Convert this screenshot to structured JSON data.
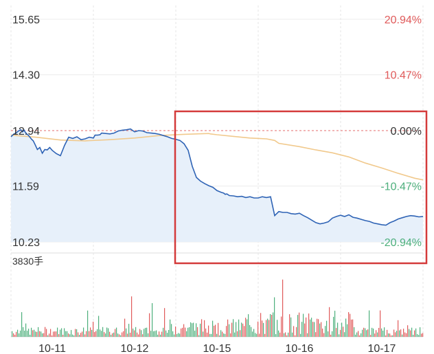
{
  "chart_data": [
    {
      "type": "line",
      "panel": "price",
      "y_left_ticks": [
        "15.65",
        "14.30",
        "12.94",
        "11.59",
        "10.23"
      ],
      "y_left_values": [
        15.65,
        14.3,
        12.94,
        11.59,
        10.23
      ],
      "y_right_ticks": [
        "20.94%",
        "10.47%",
        "0.00%",
        "-10.47%",
        "-20.94%"
      ],
      "ylim": [
        10.23,
        15.65
      ],
      "reference_price": 12.94,
      "x_tick_labels": [
        "10-11",
        "10-12",
        "10-15",
        "10-16",
        "10-17"
      ],
      "grid": true,
      "colors": {
        "price_line": "#2e63b5",
        "avg_line": "#f1c98c",
        "area_fill": "#e7f0fa",
        "up": "#e05a5a",
        "down": "#4daf7c",
        "ref_line": "#e46b6b",
        "highlight_box": "#d43a3a"
      },
      "series": [
        {
          "role": "price",
          "x": [
            0,
            0.03,
            0.06,
            0.09,
            0.12,
            0.14,
            0.16,
            0.17,
            0.19,
            0.21,
            0.23,
            0.25,
            0.27,
            0.29,
            0.32,
            0.35,
            0.38,
            0.41,
            0.44,
            0.47,
            0.5,
            0.55,
            0.6,
            0.65,
            0.7,
            0.75,
            0.8,
            0.85,
            0.9,
            0.95,
            1.0,
            1.02,
            1.05,
            1.08,
            1.1,
            1.15,
            1.2,
            1.25,
            1.3,
            1.35,
            1.4,
            1.45,
            1.5,
            1.55,
            1.6,
            1.65,
            1.7,
            1.75,
            1.8,
            1.85,
            1.9,
            1.95,
            2.0,
            2.05,
            2.1,
            2.15,
            2.2,
            2.25,
            2.3,
            2.35,
            2.4,
            2.45,
            2.5,
            2.55,
            2.58,
            2.6,
            2.62,
            2.65,
            2.7,
            2.75,
            2.8,
            2.85,
            2.9,
            2.95,
            3.0,
            3.05,
            3.1,
            3.15,
            3.2,
            3.25,
            3.3,
            3.35,
            3.4,
            3.45,
            3.5,
            3.55,
            3.6,
            3.65,
            3.7,
            3.75,
            3.8,
            3.85,
            3.9,
            3.95,
            4.0,
            4.03,
            4.05,
            4.1,
            4.15,
            4.2,
            4.25,
            4.3,
            4.35,
            4.4,
            4.45,
            4.5,
            4.55,
            4.6,
            4.65,
            4.7,
            4.75,
            4.8,
            4.85,
            4.9,
            4.95,
            5.0
          ],
          "values": [
            12.79,
            12.85,
            12.88,
            12.93,
            12.96,
            12.91,
            12.95,
            12.91,
            12.86,
            12.83,
            12.78,
            12.73,
            12.69,
            12.61,
            12.48,
            12.53,
            12.39,
            12.48,
            12.47,
            12.53,
            12.46,
            12.38,
            12.33,
            12.58,
            12.78,
            12.75,
            12.79,
            12.72,
            12.74,
            12.78,
            12.76,
            12.83,
            12.83,
            12.84,
            12.88,
            12.87,
            12.86,
            12.88,
            12.93,
            12.95,
            12.96,
            12.98,
            12.91,
            12.94,
            12.93,
            12.89,
            12.88,
            12.87,
            12.85,
            12.82,
            12.79,
            12.75,
            12.73,
            12.7,
            12.62,
            12.46,
            12.07,
            11.8,
            11.71,
            11.65,
            11.6,
            11.56,
            11.48,
            11.44,
            11.42,
            11.39,
            11.4,
            11.36,
            11.35,
            11.33,
            11.34,
            11.31,
            11.33,
            11.3,
            11.3,
            11.33,
            11.31,
            11.33,
            10.87,
            10.97,
            10.95,
            10.95,
            10.92,
            10.91,
            10.93,
            10.87,
            10.82,
            10.76,
            10.7,
            10.67,
            10.69,
            10.72,
            10.81,
            10.85,
            10.88,
            10.86,
            10.85,
            10.89,
            10.83,
            10.81,
            10.78,
            10.75,
            10.73,
            10.69,
            10.67,
            10.65,
            10.64,
            10.7,
            10.74,
            10.79,
            10.82,
            10.85,
            10.87,
            10.86,
            10.84,
            10.85
          ]
        },
        {
          "role": "average",
          "x": [
            0,
            0.3,
            0.6,
            0.9,
            1.2,
            1.5,
            1.8,
            2.1,
            2.4,
            2.42,
            2.5,
            2.7,
            2.9,
            3.1,
            3.2,
            3.25,
            3.5,
            3.7,
            3.9,
            4.1,
            4.3,
            4.5,
            4.7,
            4.9,
            5.0
          ],
          "values": [
            12.83,
            12.78,
            12.71,
            12.69,
            12.72,
            12.76,
            12.82,
            12.85,
            12.87,
            12.86,
            12.84,
            12.8,
            12.76,
            12.74,
            12.7,
            12.63,
            12.55,
            12.47,
            12.4,
            12.3,
            12.15,
            12.03,
            11.9,
            11.78,
            11.74
          ]
        }
      ]
    },
    {
      "type": "bar",
      "panel": "volume",
      "label": "3830手",
      "colors": {
        "up": "#e05a5a",
        "down": "#4daf7c"
      }
    }
  ]
}
